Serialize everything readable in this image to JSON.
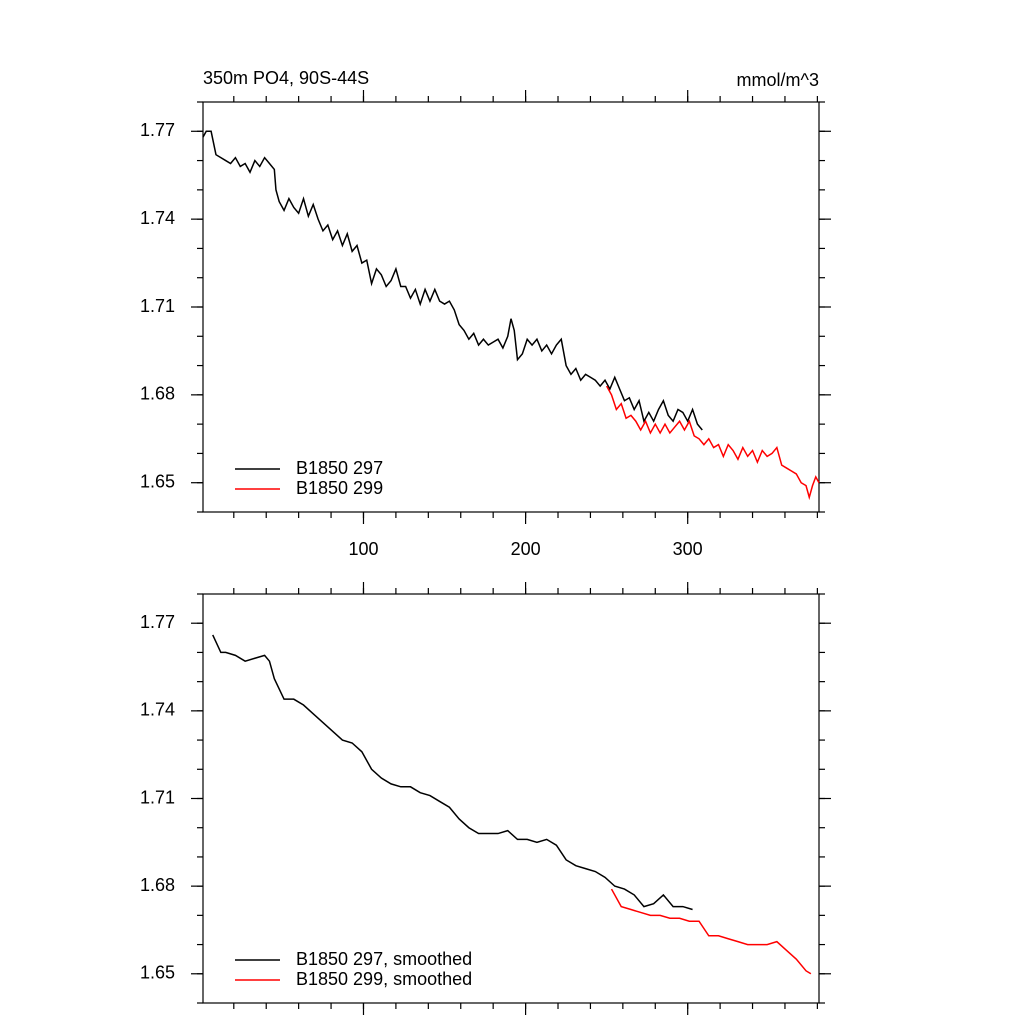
{
  "chart_data": [
    {
      "type": "line",
      "title": "350m PO4, 90S-44S",
      "units": "mmol/m^3",
      "xlim": [
        1,
        381
      ],
      "ylim": [
        1.64,
        1.78
      ],
      "xticks": [
        100,
        200,
        300
      ],
      "yticks": [
        1.65,
        1.68,
        1.71,
        1.74,
        1.77
      ],
      "xtick_labels": true,
      "legend": "lower left",
      "series": [
        {
          "name": "B1850 297",
          "color": "#000000",
          "x": [
            1,
            3,
            6,
            9,
            12,
            15,
            18,
            21,
            24,
            27,
            30,
            33,
            36,
            39,
            42,
            45,
            46,
            48,
            51,
            54,
            57,
            60,
            63,
            66,
            69,
            72,
            75,
            78,
            81,
            84,
            87,
            90,
            93,
            96,
            99,
            102,
            105,
            108,
            111,
            114,
            117,
            120,
            123,
            126,
            129,
            132,
            135,
            138,
            141,
            144,
            147,
            150,
            153,
            156,
            159,
            162,
            165,
            168,
            171,
            174,
            177,
            180,
            183,
            186,
            189,
            191,
            193,
            195,
            198,
            201,
            204,
            207,
            210,
            213,
            216,
            219,
            222,
            225,
            228,
            231,
            234,
            237,
            240,
            243,
            246,
            249,
            252,
            255,
            258,
            261,
            264,
            267,
            270,
            273,
            276,
            279,
            282,
            285,
            288,
            291,
            294,
            297,
            300,
            303,
            306,
            309
          ],
          "values": [
            1.768,
            1.77,
            1.77,
            1.762,
            1.761,
            1.76,
            1.759,
            1.761,
            1.758,
            1.759,
            1.756,
            1.76,
            1.758,
            1.761,
            1.759,
            1.757,
            1.75,
            1.746,
            1.743,
            1.747,
            1.744,
            1.742,
            1.747,
            1.741,
            1.745,
            1.74,
            1.736,
            1.738,
            1.733,
            1.736,
            1.731,
            1.735,
            1.729,
            1.731,
            1.725,
            1.726,
            1.718,
            1.723,
            1.721,
            1.717,
            1.719,
            1.723,
            1.717,
            1.717,
            1.713,
            1.716,
            1.711,
            1.716,
            1.712,
            1.716,
            1.712,
            1.711,
            1.712,
            1.709,
            1.704,
            1.702,
            1.699,
            1.701,
            1.697,
            1.699,
            1.697,
            1.698,
            1.699,
            1.696,
            1.7,
            1.706,
            1.702,
            1.692,
            1.694,
            1.699,
            1.697,
            1.699,
            1.695,
            1.697,
            1.694,
            1.697,
            1.699,
            1.69,
            1.687,
            1.689,
            1.685,
            1.687,
            1.686,
            1.685,
            1.683,
            1.685,
            1.682,
            1.686,
            1.682,
            1.678,
            1.679,
            1.675,
            1.678,
            1.671,
            1.674,
            1.671,
            1.675,
            1.678,
            1.673,
            1.671,
            1.675,
            1.674,
            1.671,
            1.675,
            1.67,
            1.668
          ]
        },
        {
          "name": "B1850 299",
          "color": "#ff0000",
          "x": [
            250,
            253,
            256,
            259,
            262,
            265,
            268,
            271,
            274,
            277,
            280,
            283,
            286,
            289,
            292,
            295,
            298,
            301,
            304,
            307,
            310,
            313,
            316,
            319,
            322,
            325,
            328,
            331,
            334,
            337,
            340,
            343,
            346,
            349,
            352,
            355,
            358,
            361,
            364,
            367,
            370,
            373,
            375,
            377,
            379,
            381
          ],
          "values": [
            1.683,
            1.68,
            1.675,
            1.677,
            1.672,
            1.673,
            1.671,
            1.668,
            1.671,
            1.667,
            1.67,
            1.667,
            1.67,
            1.667,
            1.669,
            1.671,
            1.668,
            1.671,
            1.666,
            1.665,
            1.663,
            1.665,
            1.662,
            1.663,
            1.659,
            1.663,
            1.661,
            1.658,
            1.662,
            1.659,
            1.661,
            1.657,
            1.661,
            1.659,
            1.66,
            1.662,
            1.656,
            1.655,
            1.654,
            1.653,
            1.65,
            1.649,
            1.645,
            1.649,
            1.652,
            1.65
          ]
        }
      ]
    },
    {
      "type": "line",
      "xlim": [
        1,
        381
      ],
      "ylim": [
        1.64,
        1.78
      ],
      "xticks": [
        100,
        200,
        300
      ],
      "yticks": [
        1.65,
        1.68,
        1.71,
        1.74,
        1.77
      ],
      "xtick_labels": false,
      "legend": "lower left",
      "series": [
        {
          "name": "B1850 297, smoothed",
          "color": "#000000",
          "x": [
            7,
            12,
            15,
            21,
            27,
            33,
            39,
            42,
            45,
            51,
            57,
            63,
            69,
            75,
            81,
            87,
            93,
            99,
            105,
            111,
            117,
            123,
            129,
            135,
            141,
            147,
            153,
            159,
            165,
            171,
            177,
            183,
            189,
            195,
            201,
            207,
            213,
            219,
            225,
            231,
            237,
            243,
            249,
            255,
            261,
            267,
            273,
            279,
            285,
            291,
            297,
            303
          ],
          "values": [
            1.766,
            1.76,
            1.76,
            1.759,
            1.757,
            1.758,
            1.759,
            1.757,
            1.751,
            1.744,
            1.744,
            1.742,
            1.739,
            1.736,
            1.733,
            1.73,
            1.729,
            1.726,
            1.72,
            1.717,
            1.715,
            1.714,
            1.714,
            1.712,
            1.711,
            1.709,
            1.707,
            1.703,
            1.7,
            1.698,
            1.698,
            1.698,
            1.699,
            1.696,
            1.696,
            1.695,
            1.696,
            1.694,
            1.689,
            1.687,
            1.686,
            1.685,
            1.683,
            1.68,
            1.679,
            1.677,
            1.673,
            1.674,
            1.677,
            1.673,
            1.673,
            1.672
          ]
        },
        {
          "name": "B1850 299, smoothed",
          "color": "#ff0000",
          "x": [
            253,
            259,
            265,
            271,
            277,
            283,
            289,
            295,
            301,
            307,
            313,
            319,
            325,
            331,
            337,
            343,
            349,
            355,
            361,
            367,
            373,
            376
          ],
          "values": [
            1.679,
            1.673,
            1.672,
            1.671,
            1.67,
            1.67,
            1.669,
            1.669,
            1.668,
            1.668,
            1.663,
            1.663,
            1.662,
            1.661,
            1.66,
            1.66,
            1.66,
            1.661,
            1.658,
            1.655,
            1.651,
            1.65
          ]
        }
      ]
    }
  ]
}
